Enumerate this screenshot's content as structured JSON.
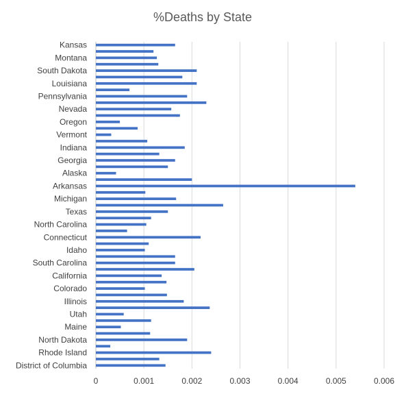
{
  "chart_data": {
    "type": "bar",
    "orientation": "horizontal",
    "title": "%Deaths by State",
    "xlabel": "",
    "ylabel": "",
    "xlim": [
      0,
      0.006
    ],
    "xticks": [
      "0",
      "0.001",
      "0.002",
      "0.003",
      "0.004",
      "0.005",
      "0.006"
    ],
    "grid": "vertical",
    "bar_color": "#4472C4",
    "categories": [
      "Kansas",
      "",
      "Montana",
      "",
      "South Dakota",
      "",
      "Louisiana",
      "",
      "Pennsylvania",
      "",
      "Nevada",
      "",
      "Oregon",
      "",
      "Vermont",
      "",
      "Indiana",
      "",
      "Georgia",
      "",
      "Alaska",
      "",
      "Arkansas",
      "",
      "Michigan",
      "",
      "Texas",
      "",
      "North Carolina",
      "",
      "Connecticut",
      "",
      "Idaho",
      "",
      "South Carolina",
      "",
      "California",
      "",
      "Colorado",
      "",
      "Illinois",
      "",
      "Utah",
      "",
      "Maine",
      "",
      "North Dakota",
      "",
      "Rhode Island",
      "",
      "District of Columbia"
    ],
    "values": [
      0.00165,
      0.0012,
      0.00127,
      0.0013,
      0.0021,
      0.0018,
      0.0021,
      0.0007,
      0.0019,
      0.0023,
      0.00157,
      0.00175,
      0.0005,
      0.00087,
      0.00032,
      0.00107,
      0.00185,
      0.00132,
      0.00165,
      0.0015,
      0.00042,
      0.002,
      0.0054,
      0.00103,
      0.00167,
      0.00265,
      0.0015,
      0.00115,
      0.00105,
      0.00065,
      0.00218,
      0.0011,
      0.00102,
      0.00165,
      0.00165,
      0.00205,
      0.00137,
      0.00147,
      0.00102,
      0.00148,
      0.00183,
      0.00237,
      0.00058,
      0.00115,
      0.00052,
      0.00113,
      0.0019,
      0.0003,
      0.0024,
      0.00132,
      0.00145
    ]
  }
}
